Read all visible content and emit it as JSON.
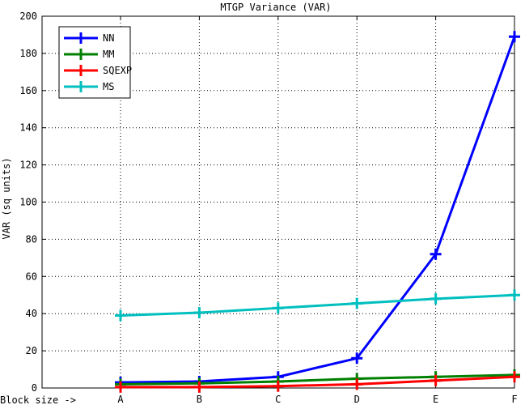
{
  "chart_data": {
    "type": "line",
    "title": "MTGP Variance (VAR)",
    "xlabel": "Block size ->",
    "ylabel": "VAR (sq units)",
    "categories": [
      "A",
      "B",
      "C",
      "D",
      "E",
      "F"
    ],
    "ylim": [
      0,
      200
    ],
    "yticks": [
      0,
      20,
      40,
      60,
      80,
      100,
      120,
      140,
      160,
      180,
      200
    ],
    "grid": true,
    "legend_position": "top-left",
    "series": [
      {
        "name": "NN",
        "color": "#0000ff",
        "values": [
          3,
          3.5,
          6,
          16,
          72,
          189
        ]
      },
      {
        "name": "MM",
        "color": "#008000",
        "values": [
          2,
          2.5,
          3.5,
          5,
          6,
          7
        ]
      },
      {
        "name": "SQEXP",
        "color": "#ff0000",
        "values": [
          0.5,
          0.5,
          1,
          2,
          4,
          6
        ]
      },
      {
        "name": "MS",
        "color": "#00bfbf",
        "values": [
          39,
          40.5,
          43,
          45.5,
          48,
          50
        ]
      }
    ]
  }
}
